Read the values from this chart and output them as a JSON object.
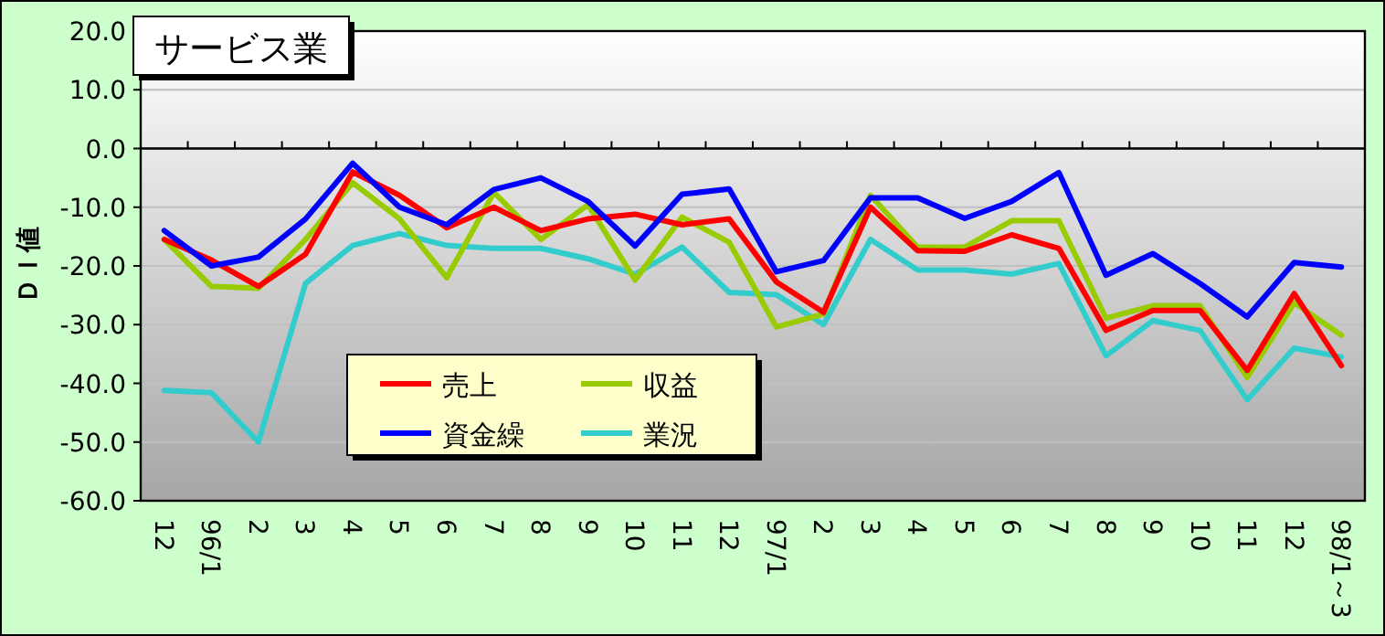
{
  "chart_data": {
    "type": "line",
    "title": "サービス業",
    "ylabel": "ＤＩ値",
    "categories": [
      "12",
      "96/1",
      "2",
      "3",
      "4",
      "5",
      "6",
      "7",
      "8",
      "9",
      "10",
      "11",
      "12",
      "97/1",
      "2",
      "3",
      "4",
      "5",
      "6",
      "7",
      "8",
      "9",
      "10",
      "11",
      "12",
      "98/1～3"
    ],
    "ylim": [
      -60,
      20
    ],
    "yticks": [
      {
        "value": 20,
        "label": "20.0"
      },
      {
        "value": 10,
        "label": "10.0"
      },
      {
        "value": 0,
        "label": "0.0"
      },
      {
        "value": -10,
        "label": "-10.0"
      },
      {
        "value": -20,
        "label": "-20.0"
      },
      {
        "value": -30,
        "label": "-30.0"
      },
      {
        "value": -40,
        "label": "-40.0"
      },
      {
        "value": -50,
        "label": "-50.0"
      },
      {
        "value": -60,
        "label": "-60.0"
      }
    ],
    "grid": "y",
    "legend": "bottom",
    "marker": "none",
    "line_style": "solid",
    "series": [
      {
        "name": "売上",
        "color": "#ff0000",
        "values": [
          -15.5,
          -19,
          -23.5,
          -18,
          -4,
          -8,
          -13.5,
          -10,
          -14,
          -12,
          -11.2,
          -13,
          -12,
          -22.7,
          -27.9,
          -10,
          -17.4,
          -17.5,
          -14.7,
          -17,
          -31,
          -27.6,
          -27.6,
          -37.8,
          -24.7,
          -37
        ]
      },
      {
        "name": "収益",
        "color": "#99cc00",
        "values": [
          -15.5,
          -23.5,
          -23.8,
          -15.5,
          -5.8,
          -12,
          -22,
          -7.5,
          -15.5,
          -9.6,
          -22.4,
          -11.7,
          -16,
          -30.4,
          -28.2,
          -8,
          -16.8,
          -16.8,
          -12.3,
          -12.3,
          -28.9,
          -26.8,
          -26.8,
          -39,
          -26.3,
          -31.8
        ]
      },
      {
        "name": "資金繰",
        "color": "#0000ff",
        "values": [
          -14,
          -20,
          -18.5,
          -12,
          -2.5,
          -10,
          -13,
          -7,
          -5,
          -9,
          -16.6,
          -7.8,
          -6.9,
          -21,
          -19.1,
          -8.4,
          -8.4,
          -11.9,
          -9,
          -4.1,
          -21.6,
          -17.9,
          -23,
          -28.7,
          -19.4,
          -20.2
        ]
      },
      {
        "name": "業況",
        "color": "#33cccc",
        "values": [
          -41.2,
          -41.6,
          -50,
          -23,
          -16.5,
          -14.5,
          -16.5,
          -17,
          -17,
          -18.8,
          -21.4,
          -16.8,
          -24.5,
          -24.9,
          -30,
          -15.5,
          -20.7,
          -20.7,
          -21.4,
          -19.6,
          -35.3,
          -29.3,
          -31,
          -42.8,
          -34,
          -35.5
        ]
      }
    ]
  }
}
